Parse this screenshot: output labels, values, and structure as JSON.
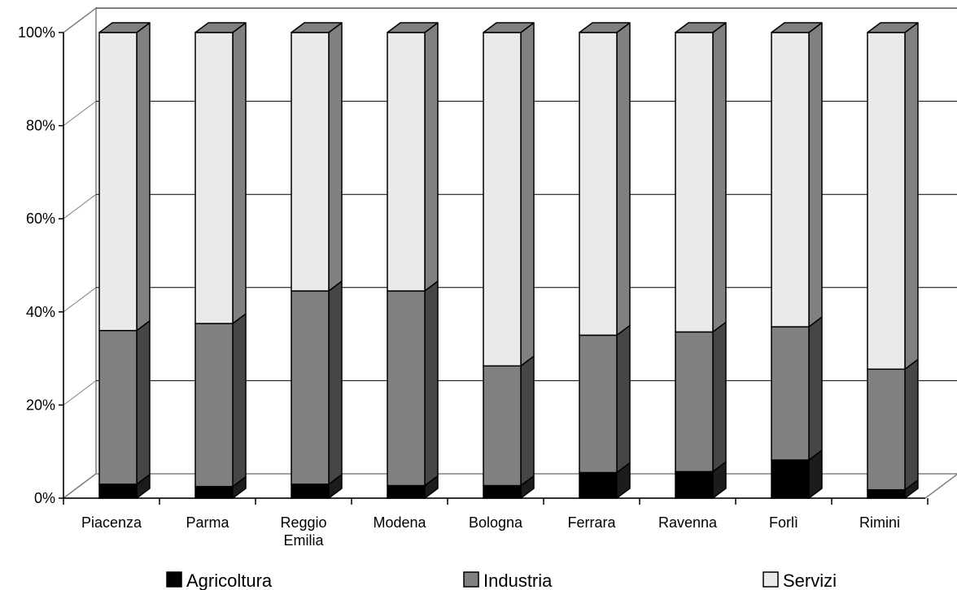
{
  "chart_data": {
    "type": "bar",
    "stacked": true,
    "percent": true,
    "three_d": true,
    "categories": [
      "Piacenza",
      "Parma",
      "Reggio Emilia",
      "Modena",
      "Bologna",
      "Ferrara",
      "Ravenna",
      "Forlì",
      "Rimini"
    ],
    "category_lines": [
      [
        "Piacenza"
      ],
      [
        "Parma"
      ],
      [
        "Reggio",
        "Emilia"
      ],
      [
        "Modena"
      ],
      [
        "Bologna"
      ],
      [
        "Ferrara"
      ],
      [
        "Ravenna"
      ],
      [
        "Forlì"
      ],
      [
        "Rimini"
      ]
    ],
    "series": [
      {
        "name": "Agricoltura",
        "values": [
          3,
          2.5,
          3,
          2.7,
          2.7,
          5.5,
          5.7,
          8.2,
          1.8
        ],
        "color": "#000000"
      },
      {
        "name": "Industria",
        "values": [
          33,
          35,
          41.5,
          41.8,
          25.7,
          29.5,
          30,
          28.6,
          25.9
        ],
        "color": "#808080"
      },
      {
        "name": "Servizi",
        "values": [
          64,
          62.5,
          55.5,
          55.5,
          71.6,
          65,
          64.3,
          63.2,
          72.3
        ],
        "color": "#eaeaea"
      }
    ],
    "y_ticks": [
      "0%",
      "20%",
      "40%",
      "60%",
      "80%",
      "100%"
    ],
    "ylim": [
      0,
      100
    ],
    "grid": true,
    "legend_position": "bottom"
  }
}
